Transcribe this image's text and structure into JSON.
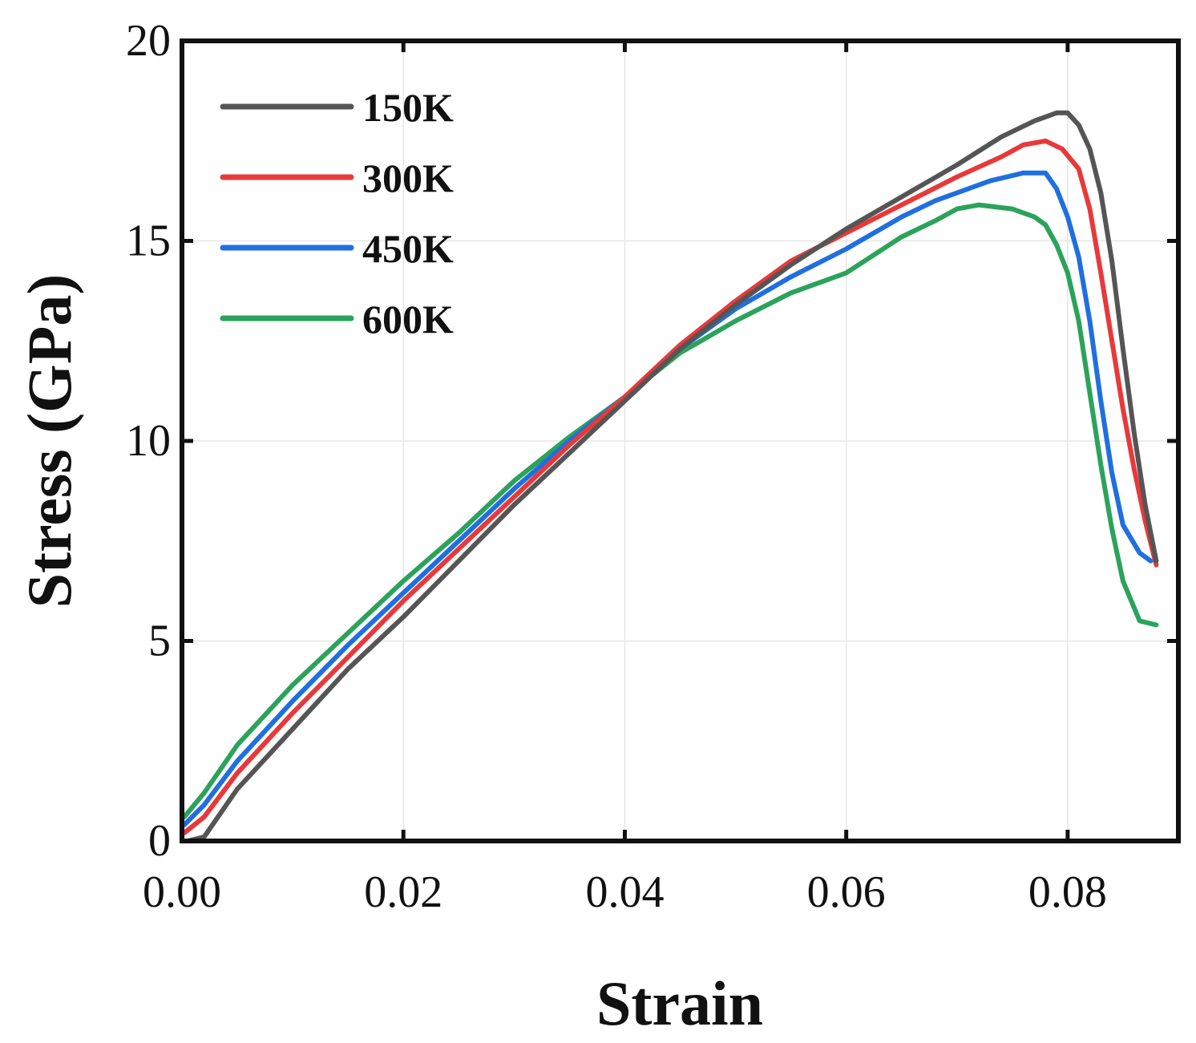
{
  "chart_data": {
    "type": "line",
    "title": "",
    "xlabel": "Strain",
    "ylabel": "Stress (GPa)",
    "xlim": [
      0.0,
      0.088
    ],
    "ylim": [
      0,
      20
    ],
    "xticks": [
      0.0,
      0.02,
      0.04,
      0.06,
      0.08
    ],
    "xtick_labels": [
      "0.00",
      "0.02",
      "0.04",
      "0.06",
      "0.08"
    ],
    "yticks": [
      0,
      5,
      10,
      15,
      20
    ],
    "ytick_labels": [
      "0",
      "5",
      "10",
      "15",
      "20"
    ],
    "grid": true,
    "legend_position": "top-left",
    "series": [
      {
        "name": "150K",
        "color": "#555555",
        "x": [
          0.0005,
          0.002,
          0.005,
          0.01,
          0.015,
          0.02,
          0.025,
          0.03,
          0.035,
          0.04,
          0.045,
          0.05,
          0.055,
          0.06,
          0.065,
          0.07,
          0.074,
          0.077,
          0.079,
          0.08,
          0.081,
          0.082,
          0.083,
          0.084,
          0.085,
          0.086,
          0.087,
          0.088
        ],
        "y": [
          0.0,
          0.1,
          1.3,
          2.8,
          4.3,
          5.6,
          7.0,
          8.4,
          9.7,
          11.0,
          12.3,
          13.4,
          14.4,
          15.3,
          16.1,
          16.9,
          17.6,
          18.0,
          18.2,
          18.2,
          17.9,
          17.3,
          16.2,
          14.5,
          12.3,
          10.2,
          8.4,
          7.0
        ]
      },
      {
        "name": "300K",
        "color": "#e8393a",
        "x": [
          0.0002,
          0.002,
          0.005,
          0.01,
          0.015,
          0.02,
          0.025,
          0.03,
          0.035,
          0.04,
          0.045,
          0.05,
          0.055,
          0.06,
          0.065,
          0.07,
          0.074,
          0.076,
          0.078,
          0.0795,
          0.081,
          0.082,
          0.083,
          0.084,
          0.085,
          0.086,
          0.087,
          0.088
        ],
        "y": [
          0.2,
          0.6,
          1.7,
          3.2,
          4.6,
          6.0,
          7.3,
          8.6,
          9.9,
          11.1,
          12.4,
          13.5,
          14.5,
          15.2,
          15.9,
          16.6,
          17.1,
          17.4,
          17.5,
          17.3,
          16.8,
          15.8,
          14.2,
          12.5,
          10.8,
          9.3,
          8.0,
          6.9
        ]
      },
      {
        "name": "450K",
        "color": "#1f6fe0",
        "x": [
          0.0002,
          0.002,
          0.005,
          0.01,
          0.015,
          0.02,
          0.025,
          0.03,
          0.035,
          0.04,
          0.045,
          0.05,
          0.055,
          0.06,
          0.065,
          0.068,
          0.07,
          0.073,
          0.076,
          0.078,
          0.079,
          0.08,
          0.081,
          0.082,
          0.083,
          0.084,
          0.085,
          0.0865,
          0.0875
        ],
        "y": [
          0.4,
          0.9,
          2.0,
          3.5,
          4.9,
          6.2,
          7.5,
          8.8,
          10.0,
          11.1,
          12.3,
          13.3,
          14.1,
          14.8,
          15.6,
          16.0,
          16.2,
          16.5,
          16.7,
          16.7,
          16.3,
          15.6,
          14.6,
          13.0,
          11.0,
          9.2,
          7.9,
          7.2,
          7.0
        ]
      },
      {
        "name": "600K",
        "color": "#2ba35a",
        "x": [
          0.0002,
          0.002,
          0.005,
          0.01,
          0.015,
          0.02,
          0.025,
          0.03,
          0.035,
          0.04,
          0.045,
          0.05,
          0.055,
          0.06,
          0.065,
          0.068,
          0.07,
          0.072,
          0.075,
          0.077,
          0.078,
          0.079,
          0.08,
          0.081,
          0.082,
          0.083,
          0.084,
          0.085,
          0.0865,
          0.088
        ],
        "y": [
          0.6,
          1.2,
          2.4,
          3.9,
          5.2,
          6.5,
          7.7,
          9.0,
          10.1,
          11.1,
          12.2,
          13.0,
          13.7,
          14.2,
          15.1,
          15.5,
          15.8,
          15.9,
          15.8,
          15.6,
          15.4,
          14.9,
          14.2,
          13.0,
          11.2,
          9.4,
          7.8,
          6.5,
          5.5,
          5.4
        ]
      }
    ]
  }
}
